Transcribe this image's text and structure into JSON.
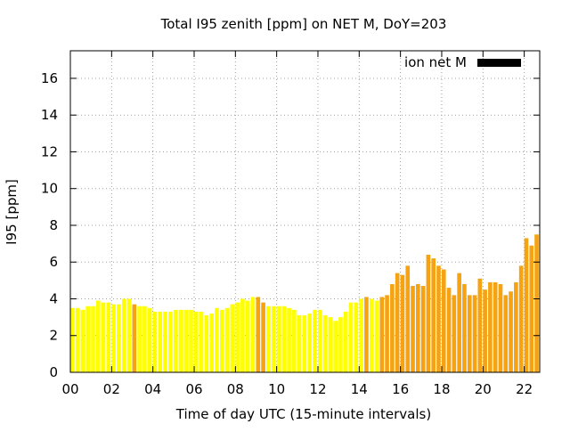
{
  "chart_data": {
    "type": "bar",
    "title": "Total I95 zenith [ppm] on NET M, DoY=203",
    "xlabel": "Time of day UTC (15-minute intervals)",
    "ylabel": "I95 [ppm]",
    "xlim": [
      0,
      22.75
    ],
    "ylim": [
      0,
      17.5
    ],
    "x_interval_hours": 0.25,
    "xticks": [
      "00",
      "02",
      "04",
      "06",
      "08",
      "10",
      "12",
      "14",
      "16",
      "18",
      "20",
      "22"
    ],
    "yticks": [
      "0",
      "2",
      "4",
      "6",
      "8",
      "10",
      "12",
      "14",
      "16"
    ],
    "grid": true,
    "legend": {
      "position": "top-right",
      "label": "ion net M",
      "color": "#000000"
    },
    "colors": {
      "yellow": "#ffff00",
      "orange": "#f5a213"
    },
    "series": [
      {
        "name": "ion net M",
        "values": [
          3.5,
          3.5,
          3.4,
          3.6,
          3.6,
          3.9,
          3.8,
          3.8,
          3.7,
          3.7,
          4.0,
          4.0,
          3.7,
          3.6,
          3.6,
          3.5,
          3.3,
          3.3,
          3.3,
          3.3,
          3.4,
          3.4,
          3.4,
          3.4,
          3.3,
          3.3,
          3.1,
          3.2,
          3.5,
          3.4,
          3.5,
          3.7,
          3.8,
          4.0,
          3.9,
          4.1,
          4.1,
          3.8,
          3.6,
          3.6,
          3.6,
          3.6,
          3.5,
          3.4,
          3.1,
          3.1,
          3.2,
          3.4,
          3.4,
          3.1,
          3.0,
          2.8,
          3.0,
          3.3,
          3.8,
          3.8,
          4.0,
          4.1,
          4.0,
          3.9,
          4.1,
          4.2,
          4.8,
          5.4,
          5.3,
          5.8,
          4.7,
          4.8,
          4.7,
          6.4,
          6.2,
          5.8,
          5.6,
          4.6,
          4.2,
          5.4,
          4.8,
          4.2,
          4.2,
          5.1,
          4.5,
          4.9,
          4.9,
          4.8,
          4.2,
          4.4,
          4.9,
          5.8,
          7.3,
          6.9,
          7.5
        ],
        "colors": [
          "yellow",
          "yellow",
          "yellow",
          "yellow",
          "yellow",
          "yellow",
          "yellow",
          "yellow",
          "yellow",
          "yellow",
          "yellow",
          "yellow",
          "orange",
          "yellow",
          "yellow",
          "yellow",
          "yellow",
          "yellow",
          "yellow",
          "yellow",
          "yellow",
          "yellow",
          "yellow",
          "yellow",
          "yellow",
          "yellow",
          "yellow",
          "yellow",
          "yellow",
          "yellow",
          "yellow",
          "yellow",
          "yellow",
          "yellow",
          "yellow",
          "yellow",
          "orange",
          "orange",
          "yellow",
          "yellow",
          "yellow",
          "yellow",
          "yellow",
          "yellow",
          "yellow",
          "yellow",
          "yellow",
          "yellow",
          "yellow",
          "yellow",
          "yellow",
          "yellow",
          "yellow",
          "yellow",
          "yellow",
          "yellow",
          "yellow",
          "orange",
          "yellow",
          "yellow",
          "orange",
          "orange",
          "orange",
          "orange",
          "orange",
          "orange",
          "orange",
          "orange",
          "orange",
          "orange",
          "orange",
          "orange",
          "orange",
          "orange",
          "orange",
          "orange",
          "orange",
          "orange",
          "orange",
          "orange",
          "orange",
          "orange",
          "orange",
          "orange",
          "orange",
          "orange",
          "orange",
          "orange",
          "orange",
          "orange",
          "orange"
        ]
      }
    ]
  }
}
